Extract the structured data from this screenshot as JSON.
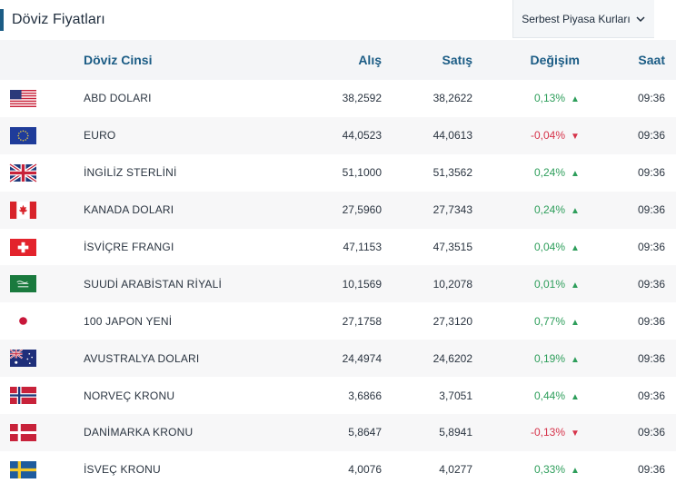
{
  "header": {
    "title": "Döviz Fiyatları",
    "market_select": "Serbest Piyasa Kurları"
  },
  "table": {
    "columns": {
      "name": "Döviz Cinsi",
      "buy": "Alış",
      "sell": "Satış",
      "change": "Değişim",
      "time": "Saat"
    },
    "rows": [
      {
        "flag": "flag-usa-icon",
        "name": "ABD DOLARI",
        "buy": "38,2592",
        "sell": "38,2622",
        "change": "0,13%",
        "dir": "up",
        "time": "09:36"
      },
      {
        "flag": "flag-eu-icon",
        "name": "EURO",
        "buy": "44,0523",
        "sell": "44,0613",
        "change": "-0,04%",
        "dir": "down",
        "time": "09:36"
      },
      {
        "flag": "flag-uk-icon",
        "name": "İNGİLİZ STERLİNİ",
        "buy": "51,1000",
        "sell": "51,3562",
        "change": "0,24%",
        "dir": "up",
        "time": "09:36"
      },
      {
        "flag": "flag-canada-icon",
        "name": "KANADA DOLARI",
        "buy": "27,5960",
        "sell": "27,7343",
        "change": "0,24%",
        "dir": "up",
        "time": "09:36"
      },
      {
        "flag": "flag-switzerland-icon",
        "name": "İSVİÇRE FRANGI",
        "buy": "47,1153",
        "sell": "47,3515",
        "change": "0,04%",
        "dir": "up",
        "time": "09:36"
      },
      {
        "flag": "flag-saudi-icon",
        "name": "SUUDİ ARABİSTAN RİYALİ",
        "buy": "10,1569",
        "sell": "10,2078",
        "change": "0,01%",
        "dir": "up",
        "time": "09:36"
      },
      {
        "flag": "flag-japan-icon",
        "name": "100 JAPON YENİ",
        "buy": "27,1758",
        "sell": "27,3120",
        "change": "0,77%",
        "dir": "up",
        "time": "09:36"
      },
      {
        "flag": "flag-australia-icon",
        "name": "AVUSTRALYA DOLARI",
        "buy": "24,4974",
        "sell": "24,6202",
        "change": "0,19%",
        "dir": "up",
        "time": "09:36"
      },
      {
        "flag": "flag-norway-icon",
        "name": "NORVEÇ KRONU",
        "buy": "3,6866",
        "sell": "3,7051",
        "change": "0,44%",
        "dir": "up",
        "time": "09:36"
      },
      {
        "flag": "flag-denmark-icon",
        "name": "DANİMARKA KRONU",
        "buy": "5,8647",
        "sell": "5,8941",
        "change": "-0,13%",
        "dir": "down",
        "time": "09:36"
      },
      {
        "flag": "flag-sweden-icon",
        "name": "İSVEÇ KRONU",
        "buy": "4,0076",
        "sell": "4,0277",
        "change": "0,33%",
        "dir": "up",
        "time": "09:36"
      }
    ]
  },
  "symbols": {
    "up": "▲",
    "down": "▼"
  },
  "colors": {
    "accent": "#1b5c85",
    "up": "#2e9e5b",
    "down": "#d6334a"
  }
}
